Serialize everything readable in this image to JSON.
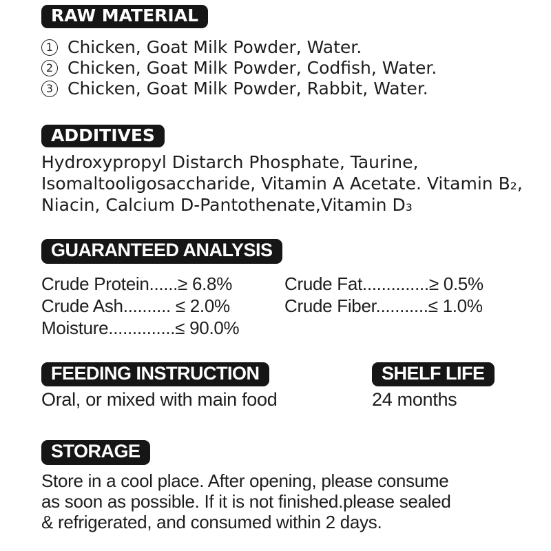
{
  "colors": {
    "background": "#ffffff",
    "pill_background": "#161616",
    "pill_text": "#ffffff",
    "body_text": "#1d1d1d"
  },
  "raw_material": {
    "title": "RAW MATERIAL",
    "items": [
      {
        "num": "1",
        "text": "Chicken, Goat Milk Powder, Water."
      },
      {
        "num": "2",
        "text": "Chicken, Goat Milk Powder, Codfish, Water."
      },
      {
        "num": "3",
        "text": "Chicken, Goat Milk Powder, Rabbit, Water."
      }
    ]
  },
  "additives": {
    "title": "ADDITIVES",
    "lines": [
      "Hydroxypropyl Distarch Phosphate, Taurine,",
      "Isomaltooligosaccharide, Vitamin A Acetate. Vitamin B₂,",
      "Niacin, Calcium D-Pantothenate,Vitamin D₃"
    ]
  },
  "guaranteed_analysis": {
    "title": "GUARANTEED ANALYSIS",
    "left_rows": [
      "Crude Protein......≥ 6.8%",
      "Crude Ash.......... ≤ 2.0%",
      "Moisture..............≤ 90.0%"
    ],
    "right_rows": [
      "Crude Fat..............≥ 0.5%",
      "Crude Fiber...........≤ 1.0%"
    ]
  },
  "feeding_instruction": {
    "title": "FEEDING INSTRUCTION",
    "text": "Oral, or mixed with main food"
  },
  "shelf_life": {
    "title": "SHELF LIFE",
    "text": "24 months"
  },
  "storage": {
    "title": "STORAGE",
    "lines": [
      "Store in a cool place. After opening, please consume",
      "as soon as possible. If it is not finished.please sealed",
      "& refrigerated, and consumed within 2 days."
    ]
  }
}
